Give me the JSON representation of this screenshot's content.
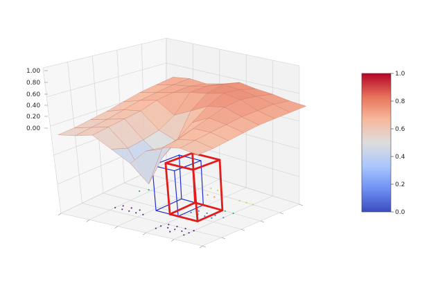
{
  "chart_data": {
    "type": "surface3d",
    "title": "",
    "z_axis": {
      "tick_labels": [
        "0.00",
        "0.20",
        "0.40",
        "0.60",
        "0.80",
        "1.00"
      ],
      "range": [
        0,
        1
      ]
    },
    "x_axis": {
      "tick_labels": [
        "",
        "",
        "",
        "",
        ""
      ]
    },
    "y_axis": {
      "tick_labels": [
        "",
        "",
        "",
        "",
        ""
      ]
    },
    "grid": true,
    "colormap": "coolwarm",
    "colorbar": {
      "range": [
        0.0,
        1.0
      ],
      "tick_labels": [
        "0.0",
        "0.2",
        "0.4",
        "0.6",
        "0.8",
        "1.0"
      ],
      "colors": [
        "#3b4cc0",
        "#6f92f3",
        "#aac7fd",
        "#dddddd",
        "#f7b89c",
        "#e7745b",
        "#b40426"
      ]
    },
    "surface_grid": {
      "rows": 8,
      "cols": 9,
      "z": [
        [
          0.7,
          0.72,
          0.71,
          0.74,
          0.78,
          0.76,
          0.75,
          0.73,
          0.72
        ],
        [
          0.68,
          0.71,
          0.73,
          0.76,
          0.8,
          0.79,
          0.77,
          0.74,
          0.71
        ],
        [
          0.66,
          0.69,
          0.72,
          0.75,
          0.77,
          0.8,
          0.78,
          0.73,
          0.7
        ],
        [
          0.63,
          0.67,
          0.7,
          0.62,
          0.68,
          0.74,
          0.76,
          0.72,
          0.69
        ],
        [
          0.6,
          0.64,
          0.66,
          0.55,
          0.5,
          0.66,
          0.72,
          0.7,
          0.67
        ],
        [
          0.58,
          0.61,
          0.64,
          0.52,
          0.42,
          0.58,
          0.68,
          0.68,
          0.65
        ],
        [
          0.56,
          0.59,
          0.62,
          0.5,
          0.28,
          0.55,
          0.64,
          0.66,
          0.63
        ],
        [
          0.55,
          0.57,
          0.6,
          0.53,
          0.46,
          0.57,
          0.62,
          0.64,
          0.62
        ]
      ]
    },
    "floor_scatter": {
      "series": [
        {
          "color": "#5b2a86",
          "values": [
            [
              0.2,
              0.25
            ],
            [
              0.25,
              0.25
            ],
            [
              0.3,
              0.25
            ],
            [
              0.35,
              0.25
            ],
            [
              0.4,
              0.25
            ],
            [
              0.22,
              0.3
            ],
            [
              0.28,
              0.3
            ],
            [
              0.34,
              0.3
            ],
            [
              0.6,
              0.15
            ],
            [
              0.65,
              0.15
            ],
            [
              0.7,
              0.15
            ],
            [
              0.75,
              0.15
            ],
            [
              0.8,
              0.15
            ],
            [
              0.62,
              0.2
            ],
            [
              0.68,
              0.2
            ],
            [
              0.74,
              0.2
            ],
            [
              0.8,
              0.2
            ],
            [
              0.6,
              0.1
            ],
            [
              0.7,
              0.1
            ],
            [
              0.8,
              0.1
            ]
          ]
        },
        {
          "color": "#3f7fbf",
          "values": [
            [
              0.6,
              0.45
            ],
            [
              0.65,
              0.45
            ],
            [
              0.7,
              0.45
            ],
            [
              0.75,
              0.45
            ],
            [
              0.62,
              0.5
            ],
            [
              0.68,
              0.5
            ],
            [
              0.74,
              0.5
            ],
            [
              0.8,
              0.5
            ]
          ]
        },
        {
          "color": "#2ca58d",
          "values": [
            [
              0.62,
              0.6
            ],
            [
              0.68,
              0.6
            ],
            [
              0.74,
              0.6
            ],
            [
              0.8,
              0.6
            ],
            [
              0.15,
              0.55
            ],
            [
              0.18,
              0.6
            ]
          ]
        },
        {
          "color": "#c8d94a",
          "values": [
            [
              0.7,
              0.8
            ],
            [
              0.75,
              0.8
            ],
            [
              0.8,
              0.8
            ],
            [
              0.45,
              0.85
            ],
            [
              0.5,
              0.85
            ]
          ]
        },
        {
          "color": "#e39b2e",
          "values": [
            [
              0.5,
              0.75
            ],
            [
              0.55,
              0.75
            ]
          ]
        }
      ]
    },
    "boxes": [
      {
        "color": "#1f2bd6",
        "x": [
          0.42,
          0.58
        ],
        "y": [
          0.35,
          0.6
        ],
        "z": [
          0.0,
          0.32
        ]
      },
      {
        "color": "#e21b1b",
        "x": [
          0.52,
          0.72
        ],
        "y": [
          0.35,
          0.6
        ],
        "z": [
          0.0,
          0.36
        ]
      }
    ]
  }
}
